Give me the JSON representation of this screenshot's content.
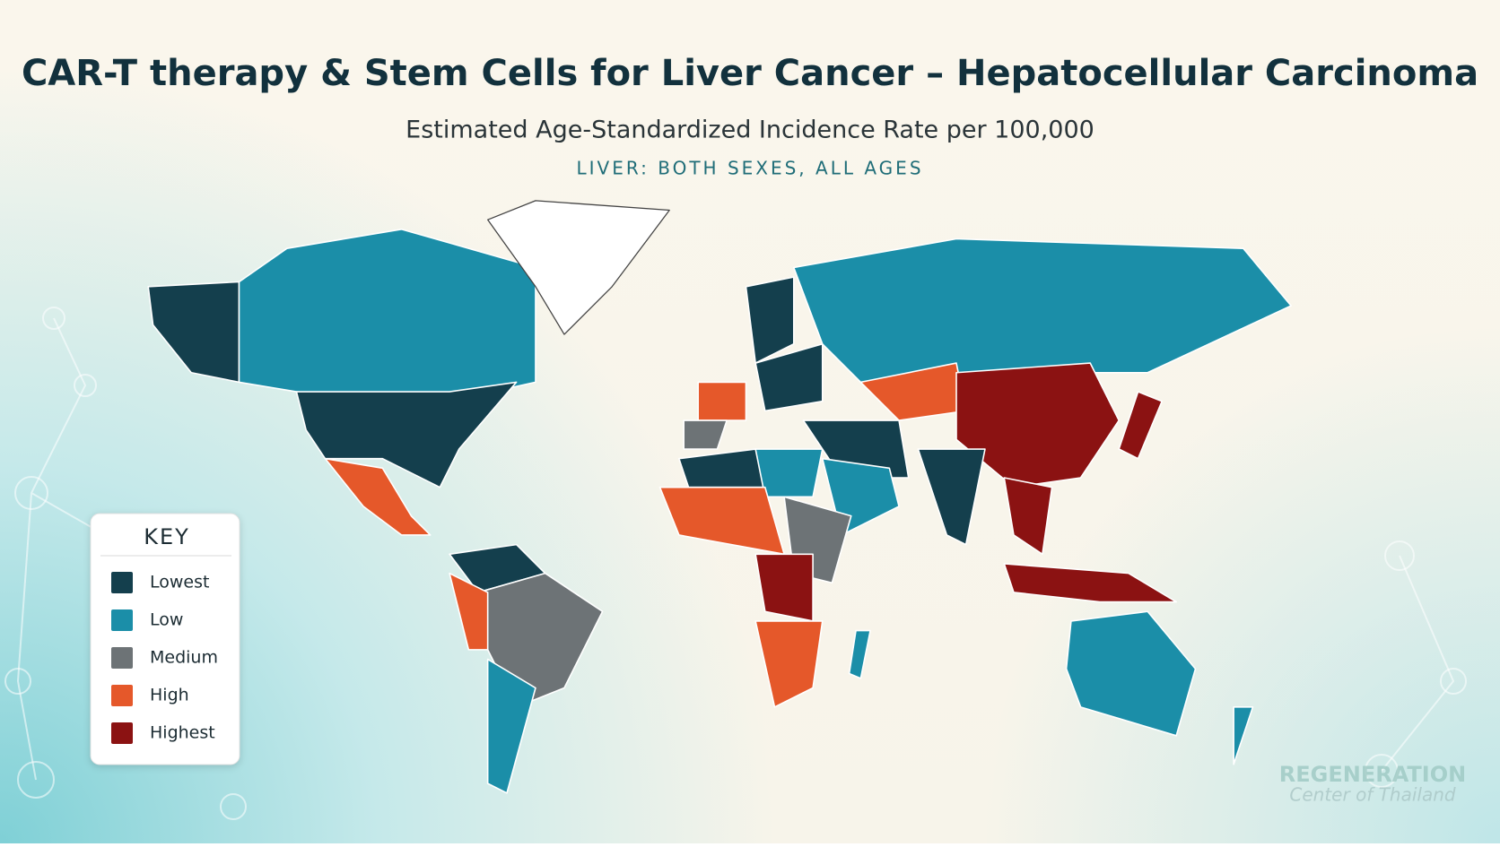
{
  "header": {
    "title": "CAR-T therapy & Stem Cells for Liver Cancer – Hepatocellular Carcinoma",
    "subtitle": "Estimated Age-Standardized Incidence Rate per 100,000",
    "caption": "LIVER: BOTH SEXES, ALL AGES"
  },
  "key": {
    "title": "KEY",
    "items": [
      {
        "label": "Lowest",
        "color": "#143f4d"
      },
      {
        "label": "Low",
        "color": "#1b8ea8"
      },
      {
        "label": "Medium",
        "color": "#6d7376"
      },
      {
        "label": "High",
        "color": "#e5582a"
      },
      {
        "label": "Highest",
        "color": "#8b1212"
      }
    ]
  },
  "watermark": {
    "line1": "REGENERATION",
    "line2": "Center of Thailand"
  }
}
